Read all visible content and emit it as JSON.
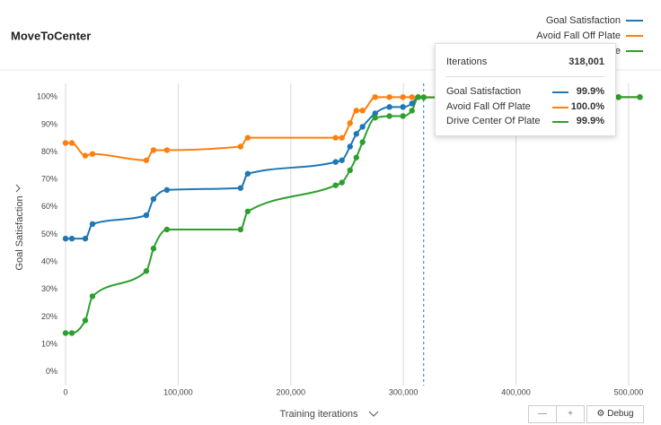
{
  "chart_data": {
    "type": "line",
    "title": "MoveToCenter",
    "x_label": "Training iterations",
    "y_label": "Goal Satisfaction",
    "xlim": [
      0,
      512000
    ],
    "ylim": [
      -5,
      105
    ],
    "xticks": [
      0,
      {
        "value": 100000,
        "label": "100,000"
      },
      {
        "value": 200000,
        "label": "200,000"
      },
      {
        "value": 300000,
        "label": "300,000"
      },
      {
        "value": 400000,
        "label": "400,000"
      },
      {
        "value": 500000,
        "label": "500,000"
      }
    ],
    "yticks": [
      {
        "value": 0,
        "label": "0%"
      },
      {
        "value": 10,
        "label": "10%"
      },
      {
        "value": 20,
        "label": "20%"
      },
      {
        "value": 30,
        "label": "30%"
      },
      {
        "value": 40,
        "label": "40%"
      },
      {
        "value": 50,
        "label": "50%"
      },
      {
        "value": 60,
        "label": "60%"
      },
      {
        "value": 70,
        "label": "70%"
      },
      {
        "value": 80,
        "label": "80%"
      },
      {
        "value": 90,
        "label": "90%"
      },
      {
        "value": 100,
        "label": "100%"
      }
    ],
    "grid": "x",
    "legend": "top-right",
    "x": [
      0,
      5600,
      17500,
      23900,
      71700,
      78100,
      90000,
      155400,
      161800,
      239800,
      245400,
      252600,
      258200,
      263700,
      274900,
      287600,
      299600,
      307600,
      313100,
      318001,
      491000,
      510000
    ],
    "series": [
      {
        "name": "Goal Satisfaction",
        "color": "#1f77b4",
        "values": [
          48.5,
          48.5,
          48.5,
          53.8,
          57.0,
          62.9,
          66.2,
          66.9,
          72.1,
          76.4,
          77.0,
          82.0,
          86.6,
          89.2,
          94.1,
          96.4,
          96.4,
          97.7,
          100,
          99.9,
          100,
          100
        ]
      },
      {
        "name": "Avoid Fall Off Plate",
        "color": "#ff7f0e",
        "values": [
          83.3,
          83.3,
          78.7,
          79.3,
          77.0,
          80.7,
          80.7,
          82.0,
          85.2,
          85.2,
          85.2,
          90.5,
          95.1,
          95.1,
          100,
          100,
          100,
          100,
          100,
          100,
          100,
          100
        ]
      },
      {
        "name": "Drive Center Of Plate",
        "color": "#2ca02c",
        "values": [
          14.1,
          14.1,
          18.7,
          27.5,
          36.7,
          44.9,
          51.8,
          51.8,
          58.4,
          67.9,
          68.9,
          73.4,
          78.0,
          83.6,
          92.5,
          93.1,
          93.1,
          95.1,
          100,
          99.9,
          100,
          100
        ]
      }
    ],
    "tooltip": {
      "label": "Iterations",
      "x": 318001,
      "x_label": "318,001",
      "values": [
        99.9,
        100.0,
        99.9
      ],
      "value_labels": [
        "99.9%",
        "100.0%",
        "99.9%"
      ]
    },
    "controls": {
      "zoom_out": "—",
      "zoom_in": "+",
      "debug": "Debug"
    }
  }
}
